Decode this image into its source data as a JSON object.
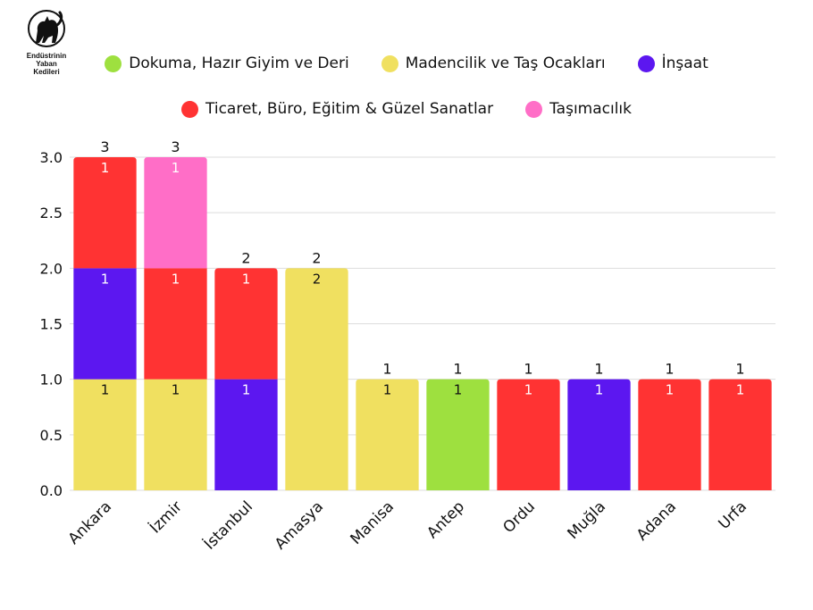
{
  "logo": {
    "text_lines": [
      "Endüstrinin",
      "Yaban",
      "Kedileri"
    ]
  },
  "chart_data": {
    "type": "bar",
    "stacked": true,
    "categories": [
      "Ankara",
      "İzmir",
      "İstanbul",
      "Amasya",
      "Manisa",
      "Antep",
      "Ordu",
      "Muğla",
      "Adana",
      "Urfa"
    ],
    "series": [
      {
        "name": "Dokuma, Hazır Giyim ve Deri",
        "color": "#9ee03f",
        "values": [
          0,
          0,
          0,
          0,
          0,
          1,
          0,
          0,
          0,
          0
        ]
      },
      {
        "name": "Madencilik ve Taş Ocakları",
        "color": "#f0e060",
        "values": [
          1,
          1,
          0,
          2,
          1,
          0,
          0,
          0,
          0,
          0
        ]
      },
      {
        "name": "İnşaat",
        "color": "#5c17f0",
        "values": [
          1,
          0,
          1,
          0,
          0,
          0,
          0,
          1,
          0,
          0
        ]
      },
      {
        "name": "Ticaret, Büro, Eğitim & Güzel Sanatlar",
        "color": "#ff3333",
        "values": [
          1,
          1,
          1,
          0,
          0,
          0,
          1,
          0,
          1,
          1
        ]
      },
      {
        "name": "Taşımacılık",
        "color": "#ff6ec7",
        "values": [
          0,
          1,
          0,
          0,
          0,
          0,
          0,
          0,
          0,
          0
        ]
      }
    ],
    "totals": [
      3,
      3,
      2,
      2,
      1,
      1,
      1,
      1,
      1,
      1
    ],
    "ylim": [
      0,
      3
    ],
    "yticks": [
      "0.0",
      "0.5",
      "1.0",
      "1.5",
      "2.0",
      "2.5",
      "3.0"
    ],
    "grid": true,
    "legend_position": "top"
  }
}
